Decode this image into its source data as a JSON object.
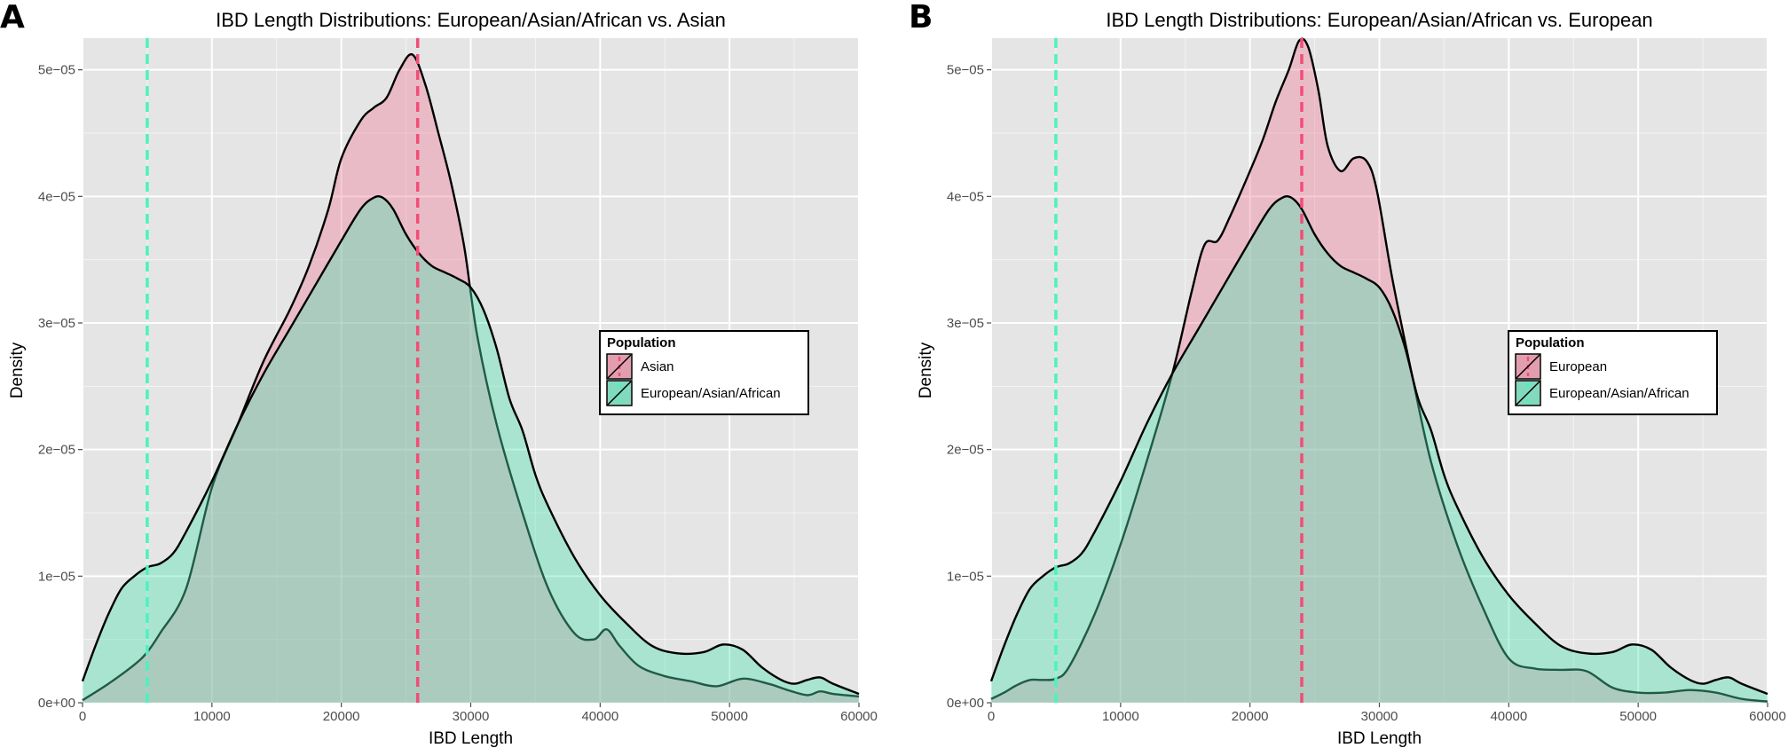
{
  "panels": [
    {
      "letter": "A"
    },
    {
      "letter": "B"
    }
  ],
  "colors": {
    "panel_background": "#e5e5e5",
    "grid": "#ffffff",
    "european_asian_african": "#50e3b4",
    "comparison": "#f07e9a",
    "vline_european_asian_african": "#4cf2c0",
    "vline_comparison": "#f24d77"
  },
  "chart_data": [
    {
      "type": "area",
      "title": "IBD Length Distributions: European/Asian/African vs. Asian",
      "xlabel": "IBD Length",
      "ylabel": "Density",
      "xlim": [
        0,
        60000
      ],
      "ylim": [
        0,
        5.25e-05
      ],
      "x_ticks": [
        0,
        10000,
        20000,
        30000,
        40000,
        50000,
        60000
      ],
      "x_tick_labels": [
        "0",
        "10000",
        "20000",
        "30000",
        "40000",
        "50000",
        "60000"
      ],
      "y_ticks": [
        0,
        1e-05,
        2e-05,
        3e-05,
        4e-05,
        5e-05
      ],
      "y_tick_labels": [
        "0e+00",
        "1e−05",
        "2e−05",
        "3e−05",
        "4e−05",
        "5e−05"
      ],
      "grid": true,
      "legend": {
        "title": "Population",
        "position": "right"
      },
      "series": [
        {
          "name": "Asian",
          "color_key": "comparison",
          "mean_line": 25900,
          "x": [
            0,
            2000,
            4000,
            5000,
            6000,
            8000,
            10000,
            12000,
            14000,
            16000,
            17500,
            19000,
            20000,
            21500,
            22500,
            23500,
            24500,
            25500,
            26500,
            27500,
            28500,
            29500,
            30500,
            32000,
            34000,
            36000,
            38000,
            39500,
            40500,
            41500,
            43000,
            45000,
            47000,
            49000,
            51000,
            53000,
            54500,
            56000,
            57000,
            58000,
            60000
          ],
          "y": [
            2e-07,
            1.5e-06,
            3e-06,
            4e-06,
            5.5e-06,
            9e-06,
            1.7e-05,
            2.2e-05,
            2.7e-05,
            3.1e-05,
            3.45e-05,
            3.9e-05,
            4.3e-05,
            4.6e-05,
            4.7e-05,
            4.78e-05,
            5e-05,
            5.12e-05,
            4.88e-05,
            4.5e-05,
            4.1e-05,
            3.6e-05,
            2.9e-05,
            2.2e-05,
            1.5e-05,
            9e-06,
            5.5e-06,
            5e-06,
            5.8e-06,
            4.5e-06,
            2.9e-06,
            2.1e-06,
            1.7e-06,
            1.3e-06,
            1.9e-06,
            1.5e-06,
            1e-06,
            6e-07,
            9e-07,
            7e-07,
            5e-07
          ]
        },
        {
          "name": "European/Asian/African",
          "color_key": "european_asian_african",
          "mean_line": 5000,
          "x": [
            0,
            1000,
            2000,
            3000,
            4000,
            5000,
            6000,
            7000,
            8000,
            10000,
            12000,
            14000,
            16000,
            18000,
            20000,
            21500,
            22500,
            23200,
            24000,
            25000,
            26000,
            27000,
            28000,
            29000,
            30000,
            31000,
            32000,
            33000,
            34000,
            35000,
            36000,
            38000,
            40000,
            42000,
            44000,
            46000,
            48000,
            49500,
            51000,
            52500,
            54000,
            55000,
            56000,
            57000,
            58000,
            60000
          ],
          "y": [
            1.7e-06,
            4.5e-06,
            7e-06,
            9e-06,
            1e-05,
            1.07e-05,
            1.1e-05,
            1.18e-05,
            1.35e-05,
            1.75e-05,
            2.2e-05,
            2.6e-05,
            2.95e-05,
            3.3e-05,
            3.65e-05,
            3.9e-05,
            3.99e-05,
            3.99e-05,
            3.9e-05,
            3.7e-05,
            3.55e-05,
            3.45e-05,
            3.4e-05,
            3.35e-05,
            3.28e-05,
            3.1e-05,
            2.8e-05,
            2.4e-05,
            2.15e-05,
            1.8e-05,
            1.55e-05,
            1.15e-05,
            8.5e-06,
            6.3e-06,
            4.5e-06,
            3.9e-06,
            4e-06,
            4.6e-06,
            4.2e-06,
            2.8e-06,
            1.8e-06,
            1.5e-06,
            1.8e-06,
            2e-06,
            1.5e-06,
            7e-07
          ]
        }
      ]
    },
    {
      "type": "area",
      "title": "IBD Length Distributions: European/Asian/African vs. European",
      "xlabel": "IBD Length",
      "ylabel": "Density",
      "xlim": [
        0,
        60000
      ],
      "ylim": [
        0,
        5.25e-05
      ],
      "x_ticks": [
        0,
        10000,
        20000,
        30000,
        40000,
        50000,
        60000
      ],
      "x_tick_labels": [
        "0",
        "10000",
        "20000",
        "30000",
        "40000",
        "50000",
        "60000"
      ],
      "y_ticks": [
        0,
        1e-05,
        2e-05,
        3e-05,
        4e-05,
        5e-05
      ],
      "y_tick_labels": [
        "0e+00",
        "1e−05",
        "2e−05",
        "3e−05",
        "4e−05",
        "5e−05"
      ],
      "grid": true,
      "legend": {
        "title": "Population",
        "position": "right"
      },
      "series": [
        {
          "name": "European",
          "color_key": "comparison",
          "mean_line": 24000,
          "x": [
            0,
            1000,
            2000,
            3000,
            4000,
            5000,
            6000,
            8000,
            10000,
            12000,
            14000,
            15500,
            16500,
            17500,
            18500,
            20000,
            21000,
            22000,
            23000,
            23800,
            24500,
            25300,
            26000,
            27000,
            28000,
            29000,
            29800,
            31000,
            32500,
            34000,
            36000,
            38000,
            40000,
            42000,
            44000,
            46000,
            48000,
            50000,
            52000,
            54000,
            56000,
            58000,
            60000
          ],
          "y": [
            3e-07,
            8e-07,
            1.4e-06,
            1.8e-06,
            1.8e-06,
            1.9e-06,
            2.8e-06,
            7e-06,
            1.25e-05,
            1.9e-05,
            2.6e-05,
            3.25e-05,
            3.62e-05,
            3.65e-05,
            3.85e-05,
            4.2e-05,
            4.45e-05,
            4.75e-05,
            5e-05,
            5.23e-05,
            5.18e-05,
            4.83e-05,
            4.4e-05,
            4.2e-05,
            4.3e-05,
            4.28e-05,
            4.05e-05,
            3.35e-05,
            2.6e-05,
            1.9e-05,
            1.25e-05,
            7.5e-06,
            3.5e-06,
            2.7e-06,
            2.6e-06,
            2.5e-06,
            1.2e-06,
            8e-07,
            8e-07,
            1e-06,
            8e-07,
            3e-07,
            1e-07
          ]
        },
        {
          "name": "European/Asian/African",
          "color_key": "european_asian_african",
          "mean_line": 5000,
          "x": [
            0,
            1000,
            2000,
            3000,
            4000,
            5000,
            6000,
            7000,
            8000,
            10000,
            12000,
            14000,
            16000,
            18000,
            20000,
            21500,
            22500,
            23200,
            24000,
            25000,
            26000,
            27000,
            28000,
            29000,
            30000,
            31000,
            32000,
            33000,
            34000,
            35000,
            36000,
            38000,
            40000,
            42000,
            44000,
            46000,
            48000,
            49500,
            51000,
            52500,
            54000,
            55000,
            56000,
            57000,
            58000,
            60000
          ],
          "y": [
            1.7e-06,
            4.5e-06,
            7e-06,
            9e-06,
            1e-05,
            1.07e-05,
            1.1e-05,
            1.18e-05,
            1.35e-05,
            1.75e-05,
            2.2e-05,
            2.6e-05,
            2.95e-05,
            3.3e-05,
            3.65e-05,
            3.9e-05,
            3.99e-05,
            3.99e-05,
            3.9e-05,
            3.7e-05,
            3.55e-05,
            3.45e-05,
            3.4e-05,
            3.35e-05,
            3.28e-05,
            3.1e-05,
            2.8e-05,
            2.4e-05,
            2.15e-05,
            1.8e-05,
            1.55e-05,
            1.15e-05,
            8.5e-06,
            6.3e-06,
            4.5e-06,
            3.9e-06,
            4e-06,
            4.6e-06,
            4.2e-06,
            2.8e-06,
            1.8e-06,
            1.5e-06,
            1.8e-06,
            2e-06,
            1.5e-06,
            7e-07
          ]
        }
      ]
    }
  ]
}
